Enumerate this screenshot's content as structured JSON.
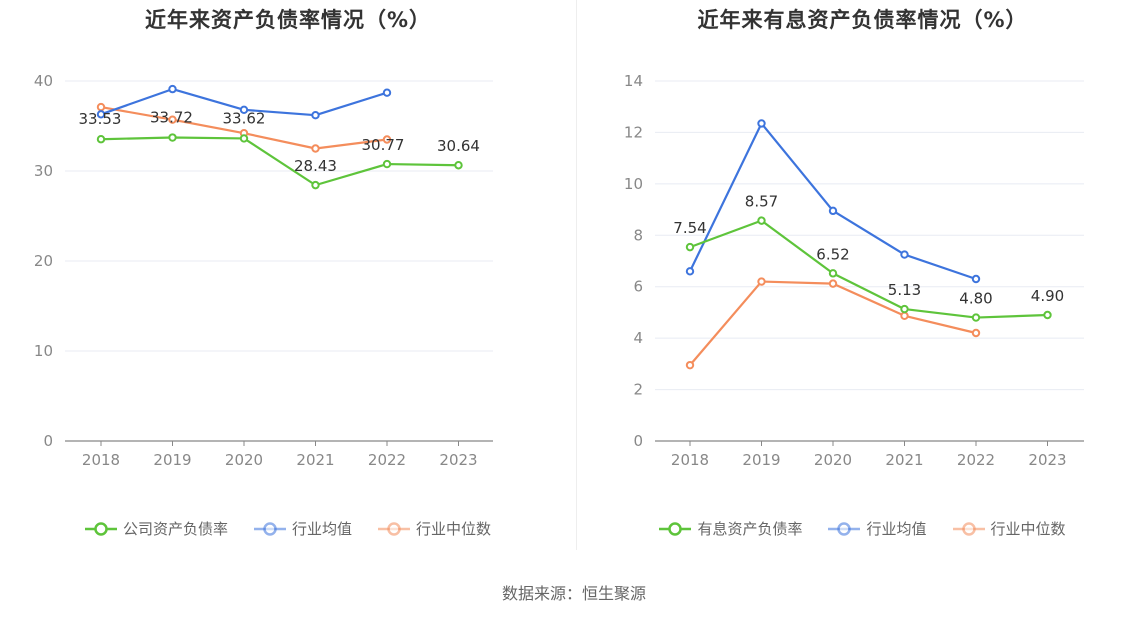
{
  "chart_data": [
    {
      "type": "line",
      "title": "近年来资产负债率情况（%）",
      "categories": [
        "2018",
        "2019",
        "2020",
        "2021",
        "2022",
        "2023"
      ],
      "ylim": [
        0,
        40
      ],
      "yticks": [
        0,
        10,
        20,
        30,
        40
      ],
      "grid": true,
      "legend_position": "bottom",
      "series": [
        {
          "name": "公司资产负债率",
          "color": "#5ec43b",
          "values": [
            33.53,
            33.72,
            33.62,
            28.43,
            30.77,
            30.64
          ],
          "labels": [
            "33.53",
            "33.72",
            "33.62",
            "28.43",
            "30.77",
            "30.64"
          ]
        },
        {
          "name": "行业均值",
          "color": "#3d74dd",
          "values": [
            36.3,
            39.1,
            36.8,
            36.2,
            38.7,
            null
          ]
        },
        {
          "name": "行业中位数",
          "color": "#f48d5c",
          "values": [
            37.1,
            35.7,
            34.2,
            32.5,
            33.5,
            null
          ]
        }
      ]
    },
    {
      "type": "line",
      "title": "近年来有息资产负债率情况（%）",
      "categories": [
        "2018",
        "2019",
        "2020",
        "2021",
        "2022",
        "2023"
      ],
      "ylim": [
        0,
        14
      ],
      "yticks": [
        0,
        2,
        4,
        6,
        8,
        10,
        12,
        14
      ],
      "grid": true,
      "legend_position": "bottom",
      "series": [
        {
          "name": "有息资产负债率",
          "color": "#5ec43b",
          "values": [
            7.54,
            8.57,
            6.52,
            5.13,
            4.8,
            4.9
          ],
          "labels": [
            "7.54",
            "8.57",
            "6.52",
            "5.13",
            "4.80",
            "4.90"
          ]
        },
        {
          "name": "行业均值",
          "color": "#3d74dd",
          "values": [
            6.6,
            12.35,
            8.95,
            7.25,
            6.3,
            null
          ]
        },
        {
          "name": "行业中位数",
          "color": "#f48d5c",
          "values": [
            2.95,
            6.2,
            6.12,
            4.87,
            4.2,
            null
          ]
        }
      ]
    }
  ],
  "source_text": "数据来源：恒生聚源"
}
